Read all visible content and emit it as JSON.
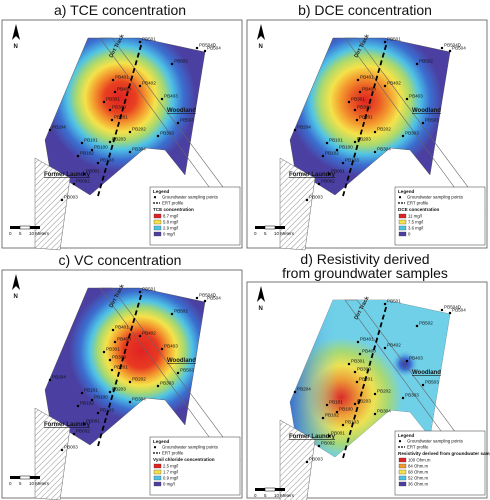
{
  "colors": {
    "background_low": "#4b3fa2",
    "blue": "#3b6fd0",
    "cyan": "#4fc3e6",
    "green": "#a9d96e",
    "yellow": "#f5e24a",
    "orange": "#f39a2e",
    "red": "#e02222",
    "frame": "#555555"
  },
  "panels": [
    {
      "key": "a",
      "title": "a) TCE concentration",
      "title2": "",
      "legend": {
        "heading": "Legend",
        "points_label": "Groundwater sampling points",
        "ert_label": "ERT profile",
        "scale_title": "TCE concentration",
        "classes": [
          "8.7 mg/l",
          "5.8 mg/l",
          "2.9 mg/l",
          "0 mg/l"
        ]
      }
    },
    {
      "key": "b",
      "title": "b) DCE concentration",
      "title2": "",
      "legend": {
        "heading": "Legend",
        "points_label": "Groundwater sampling points",
        "ert_label": "ERT profile",
        "scale_title": "DCE concentration",
        "classes": [
          "11 mg/l",
          "7.5 mg/l",
          "3.6 mg/l",
          "0"
        ]
      }
    },
    {
      "key": "c",
      "title": "c) VC concentration",
      "title2": "",
      "legend": {
        "heading": "Legend",
        "points_label": "Groundwater sampling points",
        "ert_label": "ERT profile",
        "scale_title": "Vynil chloride concentration",
        "classes": [
          "2.5 mg/l",
          "1.7 mg/l",
          "0.9 mg/l",
          "0 mg/l"
        ]
      }
    },
    {
      "key": "d",
      "title": "d) Resistivity derived",
      "title2": "from groundwater samples",
      "legend": {
        "heading": "Legend",
        "points_label": "Groundwater sampling points",
        "ert_label": "ERT profile",
        "scale_title": "Resistivity derived from groundwater samples",
        "classes": [
          "100 Ohm.m",
          "84 Ohm.m",
          "68 Ohm.m",
          "52 Ohm.m",
          "36 Ohm.m"
        ]
      }
    }
  ],
  "map_labels": {
    "north": "N",
    "road": "Dirt Track",
    "woodland": "Woodland",
    "laundry": "Former Laundry",
    "scale_ticks": [
      "0",
      "5",
      "10 Meters"
    ]
  },
  "sampling_points": [
    "PB501",
    "PB504",
    "PB504D",
    "PB502",
    "PB401",
    "PB400",
    "PB402",
    "PB403",
    "PB301",
    "PB300",
    "PB201",
    "PB204",
    "PB202",
    "PB303",
    "PB503",
    "PB101",
    "PB100",
    "PB102",
    "PB103",
    "PB304",
    "PB203",
    "PB001",
    "PB002",
    "PB003"
  ]
}
